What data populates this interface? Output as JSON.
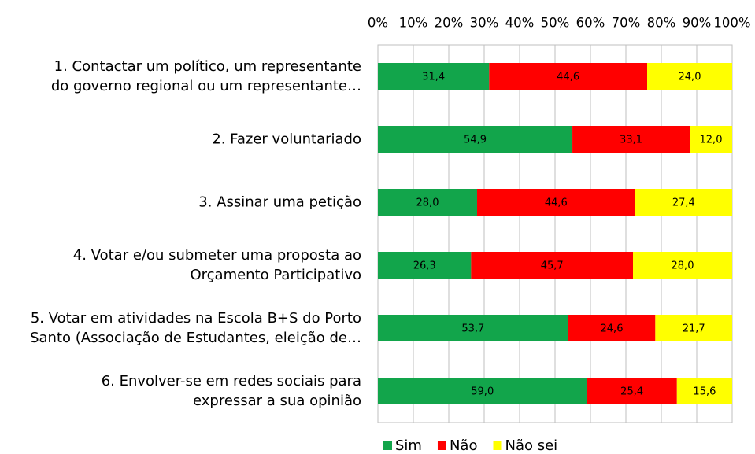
{
  "chart_data": {
    "type": "stacked-bar-horizontal",
    "categories": [
      "1. Contactar um político, um representante\ndo governo regional ou um representante…",
      "2. Fazer voluntariado",
      "3. Assinar uma petição",
      "4. Votar e/ou submeter uma proposta ao\nOrçamento Participativo",
      "5. Votar em atividades na Escola B+S do Porto\nSanto (Associação de Estudantes, eleição de…",
      "6. Envolver-se em redes sociais para\nexpressar a sua opinião"
    ],
    "series": [
      {
        "name": "Sim",
        "color": "#12a54b",
        "values": [
          31.4,
          54.9,
          28.0,
          26.3,
          53.7,
          59.0
        ],
        "value_labels": [
          "31,4",
          "54,9",
          "28,0",
          "26,3",
          "53,7",
          "59,0"
        ]
      },
      {
        "name": "Não",
        "color": "#ff0000",
        "values": [
          44.6,
          33.1,
          44.6,
          45.7,
          24.6,
          25.4
        ],
        "value_labels": [
          "44,6",
          "33,1",
          "44,6",
          "45,7",
          "24,6",
          "25,4"
        ]
      },
      {
        "name": "Não sei",
        "color": "#ffff00",
        "values": [
          24.0,
          12.0,
          27.4,
          28.0,
          21.7,
          15.6
        ],
        "value_labels": [
          "24,0",
          "12,0",
          "27,4",
          "28,0",
          "21,7",
          "15,6"
        ]
      }
    ],
    "xlim": [
      0,
      100
    ],
    "xticks": [
      {
        "value": 0,
        "label": "0%"
      },
      {
        "value": 10,
        "label": "10%"
      },
      {
        "value": 20,
        "label": "20%"
      },
      {
        "value": 30,
        "label": "30%"
      },
      {
        "value": 40,
        "label": "40%"
      },
      {
        "value": 50,
        "label": "50%"
      },
      {
        "value": 60,
        "label": "60%"
      },
      {
        "value": 70,
        "label": "70%"
      },
      {
        "value": 80,
        "label": "80%"
      },
      {
        "value": 90,
        "label": "90%"
      },
      {
        "value": 100,
        "label": "100%"
      }
    ],
    "grid": true,
    "legend": "bottom"
  }
}
